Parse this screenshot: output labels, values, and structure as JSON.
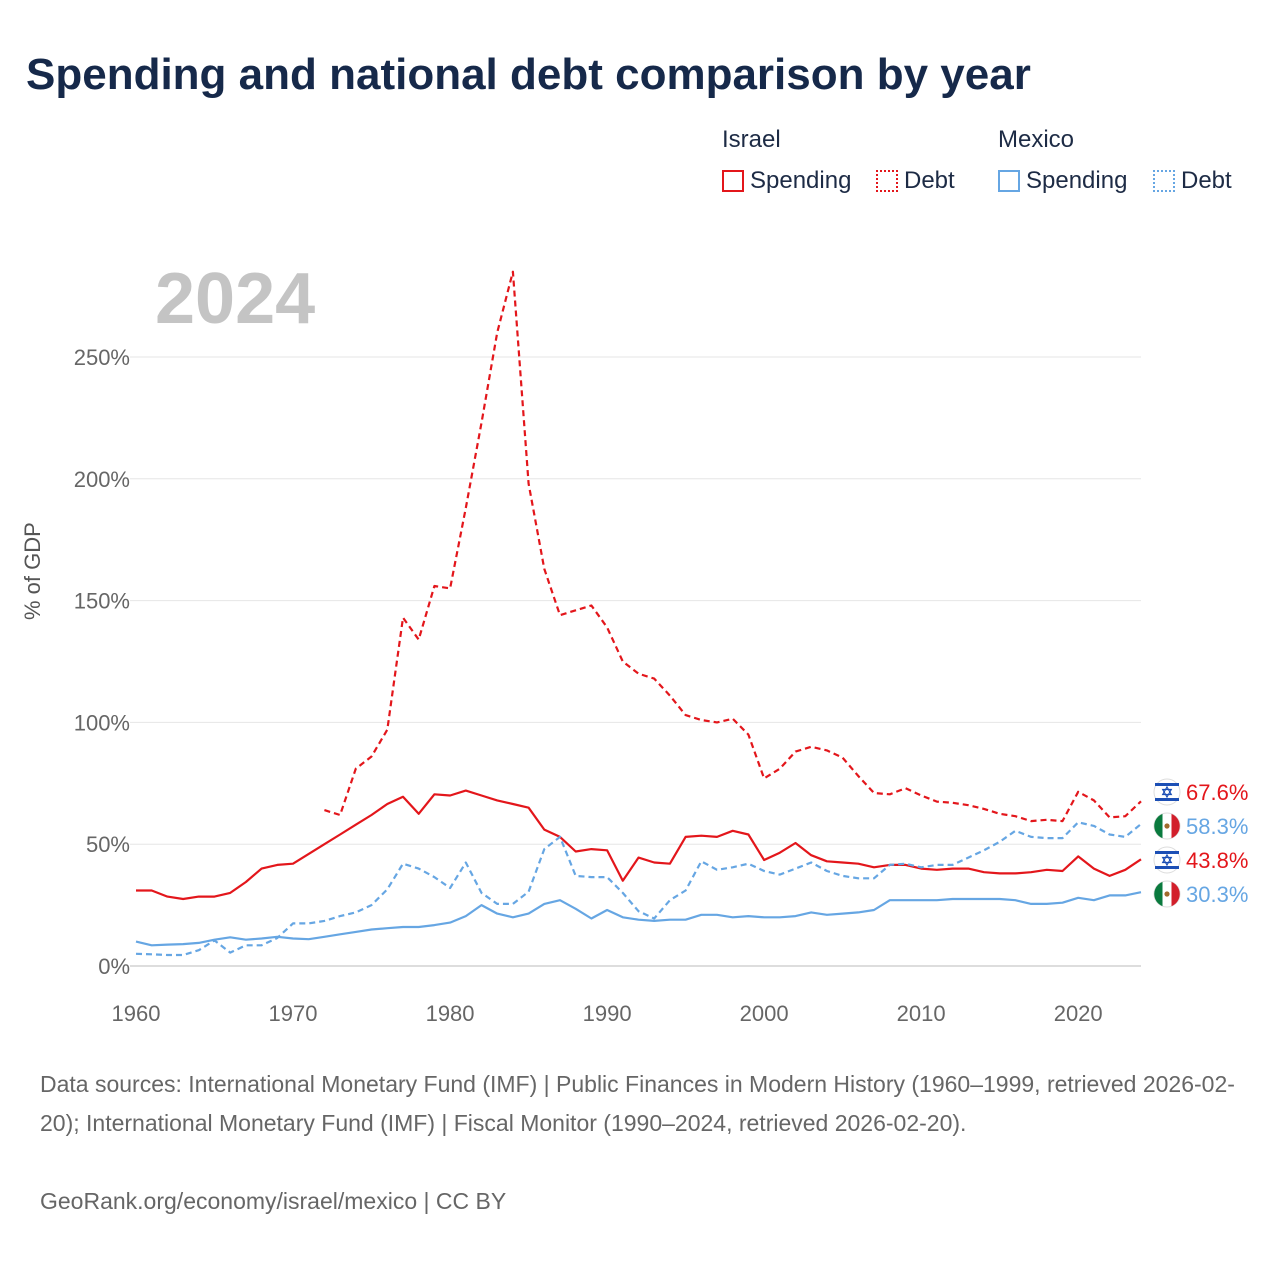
{
  "title": "Spending and national debt comparison by year",
  "legend": {
    "israel": {
      "label": "Israel",
      "spending": "Spending",
      "debt": "Debt"
    },
    "mexico": {
      "label": "Mexico",
      "spending": "Spending",
      "debt": "Debt"
    }
  },
  "year_label": "2024",
  "end_labels": {
    "israel_debt": "67.6%",
    "mexico_debt": "58.3%",
    "israel_spending": "43.8%",
    "mexico_spending": "30.3%"
  },
  "icons": {
    "israel": "israel-flag-icon",
    "mexico": "mexico-flag-icon"
  },
  "footer": {
    "sources": "Data sources: International Monetary Fund (IMF) | Public Finances in Modern History (1960–1999, retrieved 2026-02-20); International Monetary Fund (IMF) | Fiscal Monitor (1990–2024, retrieved 2026-02-20).",
    "credit": "GeoRank.org/economy/israel/mexico | CC BY"
  },
  "colors": {
    "israel": "#e3161b",
    "mexico": "#66a6e3"
  },
  "chart_data": {
    "type": "line",
    "title": "Spending and national debt comparison by year",
    "xlabel": "",
    "ylabel": "% of GDP",
    "xlim": [
      1960,
      2024
    ],
    "ylim": [
      0,
      250
    ],
    "x_ticks": [
      1960,
      1970,
      1980,
      1990,
      2000,
      2010,
      2020
    ],
    "y_ticks": [
      0,
      50,
      100,
      150,
      200,
      250
    ],
    "y_tick_labels": [
      "0%",
      "50%",
      "100%",
      "150%",
      "200%",
      "250%"
    ],
    "grid": true,
    "series": [
      {
        "name": "Israel Spending",
        "country": "israel",
        "style": "solid",
        "x": [
          1960,
          1961,
          1962,
          1963,
          1964,
          1965,
          1966,
          1967,
          1968,
          1969,
          1970,
          1971,
          1972,
          1973,
          1974,
          1975,
          1976,
          1977,
          1978,
          1979,
          1980,
          1981,
          1982,
          1983,
          1984,
          1985,
          1986,
          1987,
          1988,
          1989,
          1990,
          1991,
          1992,
          1993,
          1994,
          1995,
          1996,
          1997,
          1998,
          1999,
          2000,
          2001,
          2002,
          2003,
          2004,
          2005,
          2006,
          2007,
          2008,
          2009,
          2010,
          2011,
          2012,
          2013,
          2014,
          2015,
          2016,
          2017,
          2018,
          2019,
          2020,
          2021,
          2022,
          2023,
          2024
        ],
        "values": [
          31,
          31,
          28.5,
          27.5,
          28.5,
          28.5,
          30,
          34.5,
          40,
          41.5,
          42,
          46,
          50,
          54,
          58,
          62,
          66.5,
          69.5,
          62.5,
          70.5,
          70,
          72,
          70,
          68,
          66.5,
          65,
          56,
          53,
          47,
          48,
          47.5,
          35,
          44.5,
          42.5,
          42,
          53,
          53.5,
          53,
          55.5,
          54,
          43.5,
          46.5,
          50.5,
          45.5,
          43,
          42.5,
          42,
          40.5,
          41.5,
          41.5,
          40,
          39.5,
          40,
          40,
          38.5,
          38,
          38,
          38.5,
          39.5,
          39,
          45,
          40,
          37,
          39.5,
          43.8
        ]
      },
      {
        "name": "Israel Debt",
        "country": "israel",
        "style": "dashed",
        "x": [
          1972,
          1973,
          1974,
          1975,
          1976,
          1977,
          1978,
          1979,
          1980,
          1981,
          1982,
          1983,
          1984,
          1985,
          1986,
          1987,
          1988,
          1989,
          1990,
          1991,
          1992,
          1993,
          1994,
          1995,
          1996,
          1997,
          1998,
          1999,
          2000,
          2001,
          2002,
          2003,
          2004,
          2005,
          2006,
          2007,
          2008,
          2009,
          2010,
          2011,
          2012,
          2013,
          2014,
          2015,
          2016,
          2017,
          2018,
          2019,
          2020,
          2021,
          2022,
          2023,
          2024
        ],
        "values": [
          64,
          62,
          81,
          86,
          97,
          143,
          134,
          156,
          155,
          188,
          223,
          260,
          285,
          198,
          163,
          144,
          146,
          148,
          139,
          125,
          120,
          118,
          111,
          103,
          101,
          100,
          101.5,
          95,
          77,
          81,
          88,
          90,
          88.5,
          85.5,
          78,
          71,
          70.5,
          73,
          70,
          67.5,
          67,
          66,
          64.5,
          62.5,
          61.5,
          59.5,
          60,
          59.5,
          71.5,
          68,
          61,
          61.5,
          67.6
        ]
      },
      {
        "name": "Mexico Spending",
        "country": "mexico",
        "style": "solid",
        "x": [
          1960,
          1961,
          1962,
          1963,
          1964,
          1965,
          1966,
          1967,
          1968,
          1969,
          1970,
          1971,
          1972,
          1973,
          1974,
          1975,
          1976,
          1977,
          1978,
          1979,
          1980,
          1981,
          1982,
          1983,
          1984,
          1985,
          1986,
          1987,
          1988,
          1989,
          1990,
          1991,
          1992,
          1993,
          1994,
          1995,
          1996,
          1997,
          1998,
          1999,
          2000,
          2001,
          2002,
          2003,
          2004,
          2005,
          2006,
          2007,
          2008,
          2009,
          2010,
          2011,
          2012,
          2013,
          2014,
          2015,
          2016,
          2017,
          2018,
          2019,
          2020,
          2021,
          2022,
          2023,
          2024
        ],
        "values": [
          10,
          8.5,
          8.8,
          9,
          9.5,
          10.8,
          11.8,
          10.8,
          11.3,
          12,
          11.3,
          11,
          12,
          13,
          14,
          15,
          15.5,
          16,
          16,
          16.8,
          17.8,
          20.5,
          25,
          21.5,
          20,
          21.5,
          25.5,
          27,
          23.5,
          19.5,
          23,
          20,
          19,
          18.5,
          19,
          19,
          21,
          21,
          20,
          20.5,
          20,
          20,
          20.5,
          22,
          21,
          21.5,
          22,
          23,
          27,
          27,
          27,
          27,
          27.5,
          27.5,
          27.5,
          27.5,
          27,
          25.5,
          25.5,
          26,
          28,
          27,
          29,
          29,
          30.3
        ]
      },
      {
        "name": "Mexico Debt",
        "country": "mexico",
        "style": "dashed",
        "x": [
          1960,
          1961,
          1962,
          1963,
          1964,
          1965,
          1966,
          1967,
          1968,
          1969,
          1970,
          1971,
          1972,
          1973,
          1974,
          1975,
          1976,
          1977,
          1978,
          1979,
          1980,
          1981,
          1982,
          1983,
          1984,
          1985,
          1986,
          1987,
          1988,
          1989,
          1990,
          1991,
          1992,
          1993,
          1994,
          1995,
          1996,
          1997,
          1998,
          1999,
          2000,
          2001,
          2002,
          2003,
          2004,
          2005,
          2006,
          2007,
          2008,
          2009,
          2010,
          2011,
          2012,
          2013,
          2014,
          2015,
          2016,
          2017,
          2018,
          2019,
          2020,
          2021,
          2022,
          2023,
          2024
        ],
        "values": [
          5,
          4.8,
          4.5,
          4.5,
          6.5,
          10.5,
          5.5,
          8.5,
          8.5,
          11.5,
          17.5,
          17.5,
          18.5,
          20.5,
          22,
          25,
          31.5,
          42,
          40,
          36.5,
          32,
          42.5,
          30,
          25.5,
          25.5,
          30.5,
          48,
          53,
          37,
          36.5,
          36.5,
          30,
          22.5,
          19.5,
          27,
          31,
          43,
          39.5,
          40.5,
          42,
          39,
          37.5,
          40,
          42.5,
          39,
          37,
          36,
          36,
          41.5,
          42,
          40.5,
          41.5,
          41.5,
          44.5,
          47.5,
          51,
          55.5,
          53,
          52.5,
          52.5,
          59,
          57.5,
          54,
          53,
          58.3
        ]
      }
    ]
  }
}
